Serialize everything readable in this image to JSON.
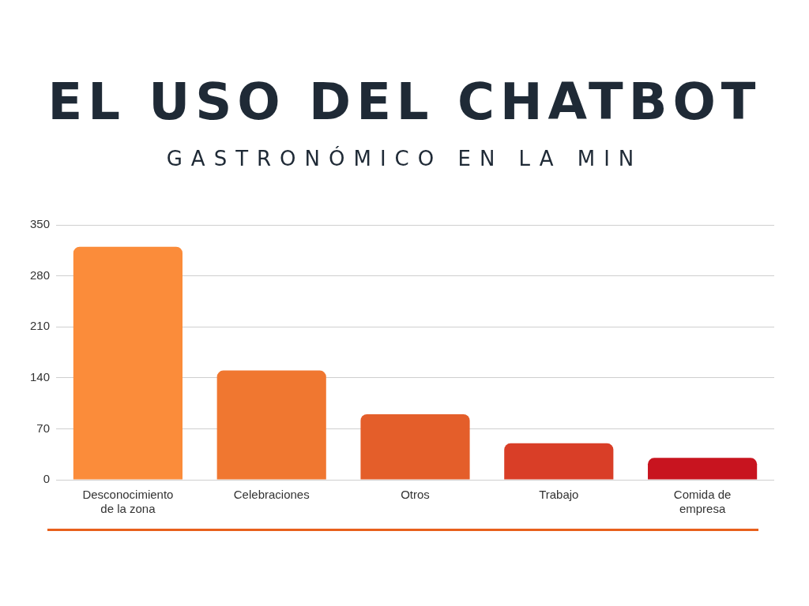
{
  "chart_data": {
    "type": "bar",
    "title": "EL USO DEL CHATBOT",
    "subtitle": "GASTRONÓMICO EN LA MIN",
    "categories": [
      "Desconocimiento de la zona",
      "Celebraciones",
      "Otros",
      "Trabajo",
      "Comida de empresa"
    ],
    "values": [
      320,
      150,
      90,
      50,
      30
    ],
    "colors": [
      "#fb8c3a",
      "#f07730",
      "#e45e2a",
      "#d93e27",
      "#c8141f"
    ],
    "ylim": [
      0,
      350
    ],
    "yticks": [
      0,
      70,
      140,
      210,
      280,
      350
    ],
    "grid": "y"
  }
}
